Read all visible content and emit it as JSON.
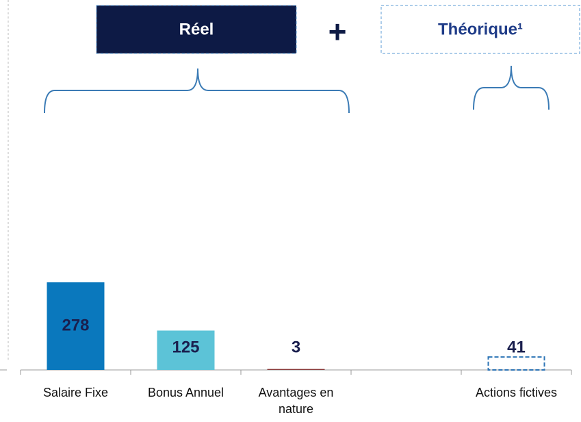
{
  "chart_data": {
    "type": "bar",
    "groups": [
      "Réel",
      "Théorique¹"
    ],
    "group_join": "+",
    "categories": [
      "Salaire Fixe",
      "Bonus Annuel",
      "Avantages en nature",
      null,
      "Actions fictives"
    ],
    "values": [
      278,
      125,
      3,
      null,
      41
    ],
    "colors": [
      "#0a78bd",
      "#5cc3d7",
      "#8a3b3b",
      null,
      "#2e75b6"
    ],
    "bar_styles": [
      "solid",
      "solid",
      "solid",
      null,
      "dashed"
    ]
  }
}
